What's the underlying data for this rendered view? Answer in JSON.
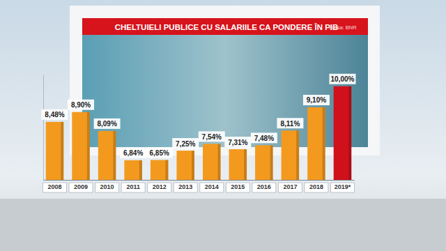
{
  "chart_data": {
    "type": "bar",
    "title": "CHELTUIELI PUBLICE CU SALARIILE CA PONDERE ÎN PIB",
    "source": "Sursa: BNR",
    "categories": [
      "2008",
      "2009",
      "2010",
      "2011",
      "2012",
      "2013",
      "2014",
      "2015",
      "2016",
      "2017",
      "2018",
      "2019*"
    ],
    "values": [
      8.48,
      8.9,
      8.09,
      6.84,
      6.85,
      7.25,
      7.54,
      7.31,
      7.48,
      8.11,
      9.1,
      10.0
    ],
    "value_labels": [
      "8,48%",
      "8,90%",
      "8,09%",
      "6,84%",
      "6,85%",
      "7,25%",
      "7,54%",
      "7,31%",
      "7,48%",
      "8,11%",
      "9,10%",
      "10,00%"
    ],
    "colors": [
      "#f39a1e",
      "#f39a1e",
      "#f39a1e",
      "#f39a1e",
      "#f39a1e",
      "#f39a1e",
      "#f39a1e",
      "#f39a1e",
      "#f39a1e",
      "#f39a1e",
      "#f39a1e",
      "#d0111b"
    ],
    "ylim": [
      6,
      10.5
    ],
    "yticks": [],
    "tick_labels": "x",
    "data_labels": true,
    "grid": false
  }
}
